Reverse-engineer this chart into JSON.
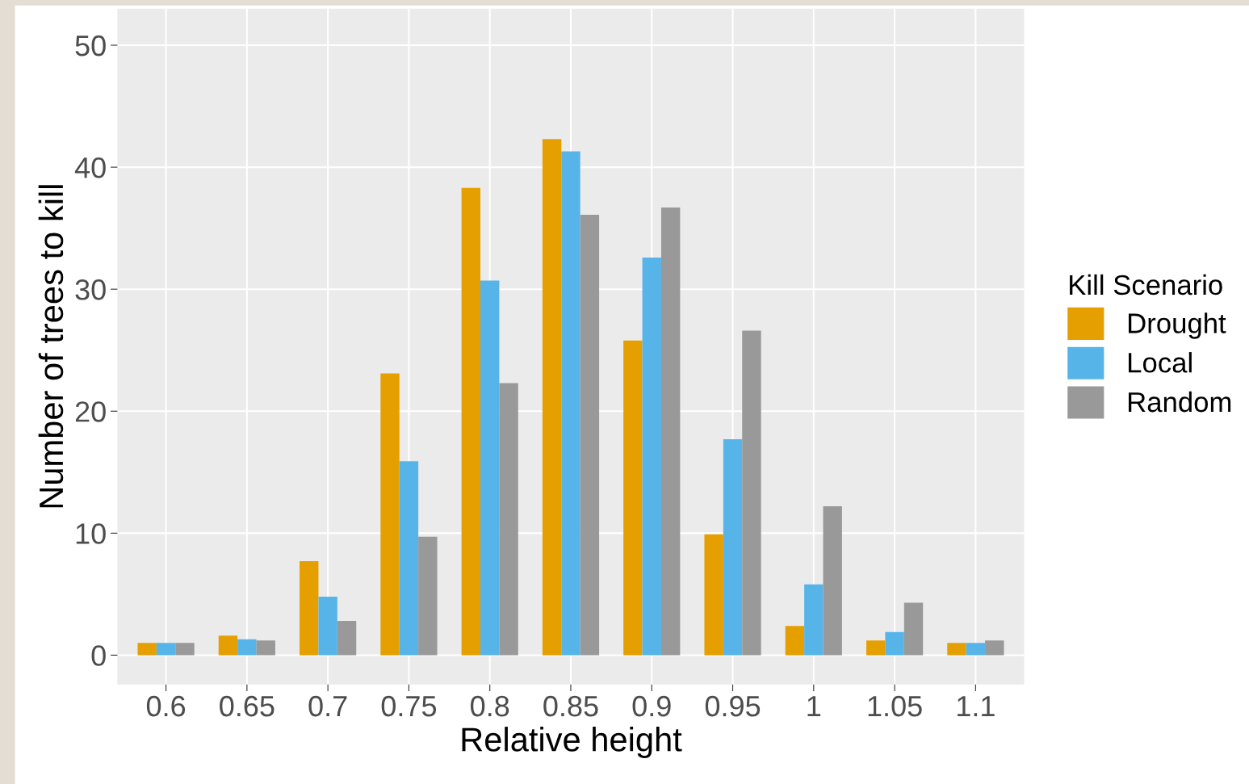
{
  "chart_data": {
    "type": "bar",
    "xlabel": "Relative height",
    "ylabel": "Number of trees to kill",
    "legend_title": "Kill Scenario",
    "categories": [
      "0.6",
      "0.65",
      "0.7",
      "0.75",
      "0.8",
      "0.85",
      "0.9",
      "0.95",
      "1",
      "1.05",
      "1.1"
    ],
    "series": [
      {
        "name": "Drought",
        "color": "#e69f00",
        "values": [
          1.0,
          1.6,
          7.7,
          23.1,
          38.3,
          42.3,
          25.8,
          9.9,
          2.4,
          1.2,
          1.0
        ]
      },
      {
        "name": "Local",
        "color": "#56b4e9",
        "values": [
          1.0,
          1.3,
          4.8,
          15.9,
          30.7,
          41.3,
          32.6,
          17.7,
          5.8,
          1.9,
          1.0
        ]
      },
      {
        "name": "Random",
        "color": "#999999",
        "values": [
          1.0,
          1.2,
          2.8,
          9.7,
          22.3,
          36.1,
          36.7,
          26.6,
          12.2,
          4.3,
          1.2
        ]
      }
    ],
    "ylim": [
      -2.4,
      53
    ],
    "yticks": [
      0,
      10,
      20,
      30,
      40,
      50
    ],
    "grid": true,
    "legend": "right"
  }
}
